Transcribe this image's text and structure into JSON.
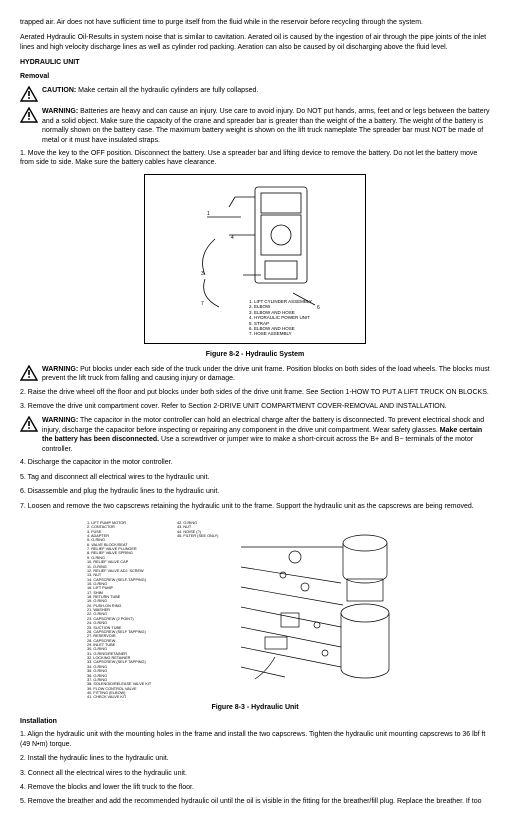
{
  "intro_p1": "trapped air. Air does not have sufficient time to purge itself from the fluid while in the reservoir before recycling through the system.",
  "intro_p2": "Aerated Hydraulic Oil-Results in system noise that is similar to cavitation. Aerated oil is caused by the ingestion of air through the pipe joints of the inlet lines and high velocity discharge lines as well as cylinder rod packing. Aeration can also be caused by oil discharging above the fluid level.",
  "h_hydraulic_unit": "HYDRAULIC UNIT",
  "h_removal": "Removal",
  "caution_label": "CAUTION:",
  "caution_text": " Make certain all the hydraulic cylinders are fully collapsed.",
  "warn_label": "WARNING:",
  "warn1": " Batteries are heavy and can cause an injury. Use care to avoid injury. Do NOT put hands, arms, feet and or legs between the battery and a solid object. Make sure the capacity of the crane and spreader bar is greater than the weight of the a battery. The weight of the battery is normally shown on the battery case. The maximum battery weight is shown on the lift truck nameplate The spreader bar must NOT be made of metal or it must have insulated straps.",
  "step1": "1. Move the key to the OFF position. Disconnect the battery. Use a spreader bar and lifting device to remove the battery. Do not let the battery move from side to side. Make sure the battery cables have clearance.",
  "fig_b2_caption": "Figure 8-2 - Hydraulic System",
  "fig_b2_legend": [
    "1. LIFT CYLINDER ASSEMBLY",
    "2. ELBOW",
    "3. ELBOW AND HOSE",
    "4. HYDRAULIC POWER UNIT",
    "5. STRAP",
    "6. ELBOW AND HOSE",
    "7. HOSE ASSEMBLY"
  ],
  "warn2": " Put blocks under each side of the truck under the drive unit frame. Position blocks on both sides of the load wheels. The blocks must prevent the lift truck from falling and causing injury or damage.",
  "step2": "2. Raise the drive wheel off the floor and put blocks under both sides of the drive unit frame. See Section 1-HOW TO PUT A LIFT TRUCK ON BLOCKS.",
  "step3": "3. Remove the drive unit compartment cover. Refer to Section 2-DRIVE UNIT COMPARTMENT COVER-REMOVAL AND INSTALLATION.",
  "warn3_a": " The capacitor in the motor controller can hold an electrical charge after the battery is disconnected. To prevent electrical shock and injury, discharge the capacitor before inspecting or repairing any component in the drive unit compartment. Wear safety glasses. ",
  "warn3_b": "Make certain the battery has been disconnected.",
  "warn3_c": " Use a screwdriver or jumper wire to make a short-circuit across the B+ and B− terminals of the motor controller.",
  "step4": "4. Discharge the capacitor in the motor controller.",
  "step5": "5. Tag and disconnect all electrical wires to the hydraulic unit.",
  "step6": "6. Disassemble and plug the hydraulic lines to the hydraulic unit.",
  "step7": "7. Loosen and remove the two capscrews retaining the hydraulic unit to the frame. Support the hydraulic unit as the capscrews are being removed.",
  "fig_b3_caption": "Figure 8-3 - Hydraulic Unit",
  "fig_b3_legend_left": [
    "1. LIFT PUMP MOTOR",
    "2. CONTACTOR",
    "3. FUSE",
    "4. ADAPTER",
    "5. O-RING",
    "6. VALVE BLOCK/SEAT",
    "7. RELIEF VALVE PLUNGER",
    "8. RELIEF VALVE SPRING",
    "9. O-RING",
    "10. RELIEF VALVE CAP",
    "11. O-RING",
    "12. RELIEF VALVE ADJ. SCREW",
    "13. NUT",
    "14. CAPSCREW (SELF-TAPPING)",
    "15. O-RING",
    "16. LIFT PUMP",
    "17. SHIM",
    "18. RETURN TUBE",
    "19. O-RING",
    "20. PUSH-ON RING",
    "21. WASHER",
    "22. O-RING",
    "23. CAPSCREW (2 POINT)",
    "24. O-RING",
    "25. SUCTION TUBE",
    "26. CAPSCREW (SELF TAPPING)",
    "27. RESERVOIR",
    "28. CAPSCREW",
    "29. INLET TUBE",
    "30. O-RING",
    "31. O-RING/RETAINER",
    "32. LOCKING RETAINER",
    "33. CAPSCREW (SELF TAPPING)",
    "34. O-RING",
    "35. O-RING",
    "36. O-RING",
    "37. O-RING",
    "38. SOLENOID/RELEASE VALVE KIT",
    "39. FLOW CONTROL VALVE",
    "40. FITTING (ELBOW)",
    "41. CHECK VALVE KIT"
  ],
  "fig_b3_legend_right": [
    "42. O-RING",
    "43. NUT",
    "44. NOISE (?)",
    "45. FILTER (SEE ONLY)"
  ],
  "h_installation": "Installation",
  "inst1": "1. Align the hydraulic unit with the mounting holes in the frame and install the two capscrews. Tighten the hydraulic unit mounting capscrews to 36 lbf ft (49 N•m) torque.",
  "inst2": "2. Install the hydraulic lines to the hydraulic unit.",
  "inst3": "3. Connect all the electrical wires to the hydraulic unit.",
  "inst4": "4. Remove the blocks and lower the lift truck to the floor.",
  "inst5": "5. Remove the breather and add the recommended hydraulic oil until the oil is visible in the fitting for the breather/fill plug. Replace the breather. If too"
}
